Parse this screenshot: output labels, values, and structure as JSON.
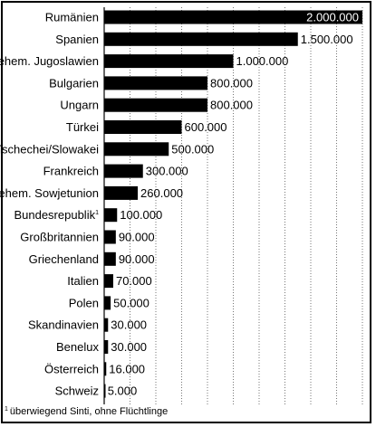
{
  "chart_data": {
    "type": "bar",
    "orientation": "horizontal",
    "categories": [
      "Rumänien",
      "Spanien",
      "ehem. Jugoslawien",
      "Bulgarien",
      "Ungarn",
      "Türkei",
      "Tschechei/Slowakei",
      "Frankreich",
      "ehem. Sowjetunion",
      "Bundesrepublik",
      "Großbritannien",
      "Griechenland",
      "Italien",
      "Polen",
      "Skandinavien",
      "Benelux",
      "Österreich",
      "Schweiz"
    ],
    "values": [
      2000000,
      1500000,
      1000000,
      800000,
      800000,
      600000,
      500000,
      300000,
      260000,
      100000,
      90000,
      90000,
      70000,
      50000,
      30000,
      30000,
      16000,
      5000
    ],
    "value_labels": [
      "2.000.000",
      "1.500.000",
      "1.000.000",
      "800.000",
      "800.000",
      "600.000",
      "500.000",
      "300.000",
      "260.000",
      "100.000",
      "90.000",
      "90.000",
      "70.000",
      "50.000",
      "30.000",
      "30.000",
      "16.000",
      "5.000"
    ],
    "footnote_markers": [
      "",
      "",
      "",
      "",
      "",
      "",
      "",
      "",
      "",
      "1",
      "",
      "",
      "",
      "",
      "",
      "",
      "",
      ""
    ],
    "xlim": [
      0,
      2000000
    ],
    "grid": "vertical-dotted",
    "bar_color": "#000000"
  },
  "footnote": {
    "marker": "1",
    "text": "überwiegend Sinti, ohne Flüchtlinge"
  }
}
